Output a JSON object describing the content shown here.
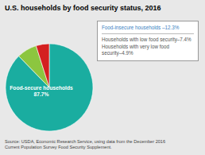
{
  "chart_data": {
    "type": "pie",
    "title": "U.S. households by food security status, 2016",
    "values": [
      87.7,
      7.4,
      4.9
    ],
    "colors": [
      "#1aada0",
      "#8cc63f",
      "#d42020"
    ],
    "pie_label": {
      "text": "Food-secure households\n87.7%",
      "color": "#ffffff"
    },
    "legend_lines": [
      {
        "text": "Food-insecure households –12.3%",
        "color": "#3a7fbf"
      },
      {
        "text": "Households with low food security–7.4%",
        "color": "#555555"
      },
      {
        "text": "Households with very low food\nsecurity–4.9%",
        "color": "#555555"
      }
    ],
    "source": "Source: USDA, Economic Research Service, using data from the December 2016\nCurrent Population Survey Food Security Supplement."
  }
}
